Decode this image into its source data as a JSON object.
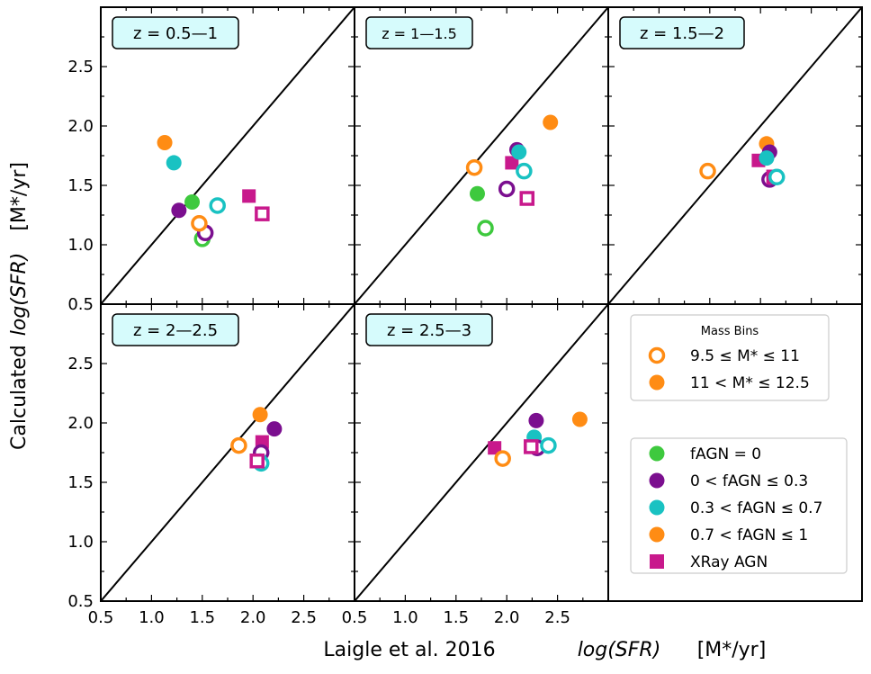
{
  "chart_data": {
    "type": "scatter",
    "xlabel": "Laigle et al. 2016",
    "xlabel_quantity": "log(SFR)",
    "xlabel_units": "[M*/yr]",
    "ylabel": "Calculated",
    "ylabel_quantity": "log(SFR)",
    "ylabel_units": "[M*/yr]",
    "xlim": [
      0.5,
      3.0
    ],
    "ylim": [
      0.5,
      3.0
    ],
    "x_ticks": [
      "0.5",
      "1.0",
      "1.5",
      "2.0",
      "2.5"
    ],
    "y_ticks": [
      "0.5",
      "1.0",
      "1.5",
      "2.0",
      "2.5"
    ],
    "colors": {
      "fAGN0": "#3ec93e",
      "fAGN03": "#7b0f8f",
      "fAGN07": "#19c2c2",
      "fAGN1": "#ff8c14",
      "xray": "#c8198c",
      "label_bg": "#d6fbfc"
    },
    "mass_legend": {
      "title": "Mass Bins",
      "entries": [
        {
          "marker": "open-circle",
          "label": "9.5 ≤ M* ≤ 11"
        },
        {
          "marker": "filled-circle",
          "label": "11 < M* ≤ 12.5"
        }
      ]
    },
    "class_legend": {
      "entries": [
        {
          "marker": "circle",
          "color_key": "fAGN0",
          "label": "fAGN = 0"
        },
        {
          "marker": "circle",
          "color_key": "fAGN03",
          "label": "0 < fAGN ≤ 0.3"
        },
        {
          "marker": "circle",
          "color_key": "fAGN07",
          "label": "0.3 < fAGN ≤ 0.7"
        },
        {
          "marker": "circle",
          "color_key": "fAGN1",
          "label": "0.7 < fAGN ≤ 1"
        },
        {
          "marker": "square",
          "color_key": "xray",
          "label": "XRay AGN"
        }
      ]
    },
    "panels": [
      {
        "label": "z = 0.5—1",
        "points": [
          {
            "x": 1.13,
            "y": 1.86,
            "cls": "fAGN1",
            "mass": "high",
            "marker": "circle"
          },
          {
            "x": 1.22,
            "y": 1.69,
            "cls": "fAGN07",
            "mass": "high",
            "marker": "circle"
          },
          {
            "x": 1.27,
            "y": 1.29,
            "cls": "fAGN03",
            "mass": "high",
            "marker": "circle"
          },
          {
            "x": 1.4,
            "y": 1.36,
            "cls": "fAGN0",
            "mass": "high",
            "marker": "circle"
          },
          {
            "x": 1.5,
            "y": 1.05,
            "cls": "fAGN0",
            "mass": "low",
            "marker": "circle"
          },
          {
            "x": 1.53,
            "y": 1.1,
            "cls": "fAGN03",
            "mass": "low",
            "marker": "circle"
          },
          {
            "x": 1.47,
            "y": 1.18,
            "cls": "fAGN1",
            "mass": "low",
            "marker": "circle"
          },
          {
            "x": 1.65,
            "y": 1.33,
            "cls": "fAGN07",
            "mass": "low",
            "marker": "circle"
          },
          {
            "x": 1.96,
            "y": 1.41,
            "cls": "xray",
            "mass": "high",
            "marker": "square"
          },
          {
            "x": 2.09,
            "y": 1.26,
            "cls": "xray",
            "mass": "low",
            "marker": "square"
          }
        ]
      },
      {
        "label": "z = 1—1.5",
        "points": [
          {
            "x": 1.68,
            "y": 1.65,
            "cls": "fAGN1",
            "mass": "low",
            "marker": "circle"
          },
          {
            "x": 1.71,
            "y": 1.43,
            "cls": "fAGN0",
            "mass": "high",
            "marker": "circle"
          },
          {
            "x": 1.79,
            "y": 1.14,
            "cls": "fAGN0",
            "mass": "low",
            "marker": "circle"
          },
          {
            "x": 2.0,
            "y": 1.47,
            "cls": "fAGN03",
            "mass": "low",
            "marker": "circle"
          },
          {
            "x": 2.05,
            "y": 1.69,
            "cls": "xray",
            "mass": "high",
            "marker": "square"
          },
          {
            "x": 2.1,
            "y": 1.8,
            "cls": "fAGN03",
            "mass": "high",
            "marker": "circle"
          },
          {
            "x": 2.12,
            "y": 1.78,
            "cls": "fAGN07",
            "mass": "high",
            "marker": "circle"
          },
          {
            "x": 2.17,
            "y": 1.62,
            "cls": "fAGN07",
            "mass": "low",
            "marker": "circle"
          },
          {
            "x": 2.2,
            "y": 1.39,
            "cls": "xray",
            "mass": "low",
            "marker": "square"
          },
          {
            "x": 2.43,
            "y": 2.03,
            "cls": "fAGN1",
            "mass": "high",
            "marker": "circle"
          }
        ]
      },
      {
        "label": "z = 1.5—2",
        "points": [
          {
            "x": 1.48,
            "y": 1.62,
            "cls": "fAGN1",
            "mass": "low",
            "marker": "circle"
          },
          {
            "x": 1.98,
            "y": 1.71,
            "cls": "xray",
            "mass": "high",
            "marker": "square"
          },
          {
            "x": 2.06,
            "y": 1.85,
            "cls": "fAGN1",
            "mass": "high",
            "marker": "circle"
          },
          {
            "x": 2.09,
            "y": 1.78,
            "cls": "fAGN03",
            "mass": "high",
            "marker": "circle"
          },
          {
            "x": 2.06,
            "y": 1.73,
            "cls": "fAGN07",
            "mass": "high",
            "marker": "circle"
          },
          {
            "x": 2.09,
            "y": 1.55,
            "cls": "fAGN03",
            "mass": "low",
            "marker": "circle"
          },
          {
            "x": 2.13,
            "y": 1.57,
            "cls": "xray",
            "mass": "low",
            "marker": "square"
          },
          {
            "x": 2.16,
            "y": 1.57,
            "cls": "fAGN07",
            "mass": "low",
            "marker": "circle"
          }
        ]
      },
      {
        "label": "z = 2—2.5",
        "points": [
          {
            "x": 1.86,
            "y": 1.81,
            "cls": "fAGN1",
            "mass": "low",
            "marker": "circle"
          },
          {
            "x": 2.07,
            "y": 2.07,
            "cls": "fAGN1",
            "mass": "high",
            "marker": "circle"
          },
          {
            "x": 2.21,
            "y": 1.95,
            "cls": "fAGN03",
            "mass": "high",
            "marker": "circle"
          },
          {
            "x": 2.09,
            "y": 1.84,
            "cls": "xray",
            "mass": "high",
            "marker": "square"
          },
          {
            "x": 2.08,
            "y": 1.75,
            "cls": "fAGN03",
            "mass": "low",
            "marker": "circle"
          },
          {
            "x": 2.07,
            "y": 1.68,
            "cls": "fAGN07",
            "mass": "high",
            "marker": "circle"
          },
          {
            "x": 2.08,
            "y": 1.66,
            "cls": "fAGN07",
            "mass": "low",
            "marker": "circle"
          },
          {
            "x": 2.04,
            "y": 1.68,
            "cls": "xray",
            "mass": "low",
            "marker": "square"
          }
        ]
      },
      {
        "label": "z = 2.5—3",
        "points": [
          {
            "x": 1.88,
            "y": 1.79,
            "cls": "xray",
            "mass": "high",
            "marker": "square"
          },
          {
            "x": 1.96,
            "y": 1.7,
            "cls": "fAGN1",
            "mass": "low",
            "marker": "circle"
          },
          {
            "x": 2.29,
            "y": 2.02,
            "cls": "fAGN03",
            "mass": "high",
            "marker": "circle"
          },
          {
            "x": 2.27,
            "y": 1.88,
            "cls": "fAGN07",
            "mass": "high",
            "marker": "circle"
          },
          {
            "x": 2.3,
            "y": 1.79,
            "cls": "fAGN03",
            "mass": "low",
            "marker": "circle"
          },
          {
            "x": 2.24,
            "y": 1.8,
            "cls": "xray",
            "mass": "low",
            "marker": "square"
          },
          {
            "x": 2.41,
            "y": 1.81,
            "cls": "fAGN07",
            "mass": "low",
            "marker": "circle"
          },
          {
            "x": 2.72,
            "y": 2.03,
            "cls": "fAGN1",
            "mass": "high",
            "marker": "circle"
          }
        ]
      }
    ]
  }
}
